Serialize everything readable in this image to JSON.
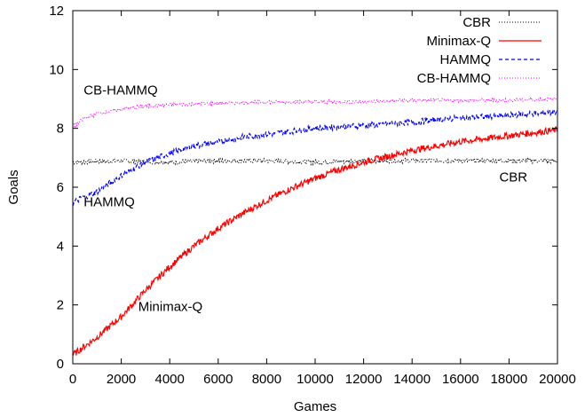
{
  "chart_data": {
    "type": "line",
    "title": "",
    "xlabel": "Games",
    "ylabel": "Goals",
    "xlim": [
      0,
      20000
    ],
    "ylim": [
      0,
      12
    ],
    "xticks": [
      0,
      2000,
      4000,
      6000,
      8000,
      10000,
      12000,
      14000,
      16000,
      18000,
      20000
    ],
    "yticks": [
      0,
      2,
      4,
      6,
      8,
      10,
      12
    ],
    "grid": false,
    "legend_position": "top-right",
    "series": [
      {
        "name": "CBR",
        "color": "#000000",
        "style": "dotted",
        "x": [
          0,
          2000,
          4000,
          6000,
          8000,
          10000,
          12000,
          14000,
          16000,
          18000,
          20000
        ],
        "y": [
          6.85,
          6.9,
          6.85,
          6.9,
          6.9,
          6.85,
          6.9,
          6.9,
          6.9,
          6.9,
          6.9
        ]
      },
      {
        "name": "Minimax-Q",
        "color": "#ff0000",
        "style": "solid",
        "x": [
          0,
          1000,
          2000,
          3000,
          4000,
          5000,
          6000,
          7000,
          8000,
          9000,
          10000,
          11000,
          12000,
          13000,
          14000,
          15000,
          16000,
          17000,
          18000,
          19000,
          20000
        ],
        "y": [
          0.3,
          0.9,
          1.6,
          2.5,
          3.3,
          4.0,
          4.6,
          5.1,
          5.55,
          5.95,
          6.3,
          6.6,
          6.85,
          7.05,
          7.25,
          7.4,
          7.55,
          7.65,
          7.75,
          7.85,
          7.95
        ]
      },
      {
        "name": "HAMMQ",
        "color": "#0000ff",
        "style": "dashed",
        "x": [
          0,
          1000,
          2000,
          3000,
          4000,
          5000,
          6000,
          7000,
          8000,
          9000,
          10000,
          11000,
          12000,
          13000,
          14000,
          15000,
          16000,
          17000,
          18000,
          19000,
          20000
        ],
        "y": [
          5.5,
          5.85,
          6.4,
          6.85,
          7.15,
          7.4,
          7.55,
          7.7,
          7.8,
          7.9,
          8.0,
          8.05,
          8.1,
          8.15,
          8.2,
          8.3,
          8.35,
          8.4,
          8.45,
          8.5,
          8.55
        ]
      },
      {
        "name": "CB-HAMMQ",
        "color": "#ff00ff",
        "style": "dotted",
        "x": [
          0,
          500,
          1000,
          2000,
          3000,
          4000,
          6000,
          8000,
          10000,
          12000,
          14000,
          16000,
          18000,
          20000
        ],
        "y": [
          8.05,
          8.35,
          8.5,
          8.65,
          8.75,
          8.8,
          8.85,
          8.9,
          8.9,
          8.9,
          8.95,
          8.95,
          8.95,
          9.0
        ]
      }
    ],
    "annotations": [
      {
        "text": "CB-HAMMQ",
        "x": 450,
        "y": 9.15
      },
      {
        "text": "HAMMQ",
        "x": 450,
        "y": 5.35
      },
      {
        "text": "Minimax-Q",
        "x": 2700,
        "y": 1.8
      },
      {
        "text": "CBR",
        "x": 17600,
        "y": 6.2
      }
    ]
  }
}
